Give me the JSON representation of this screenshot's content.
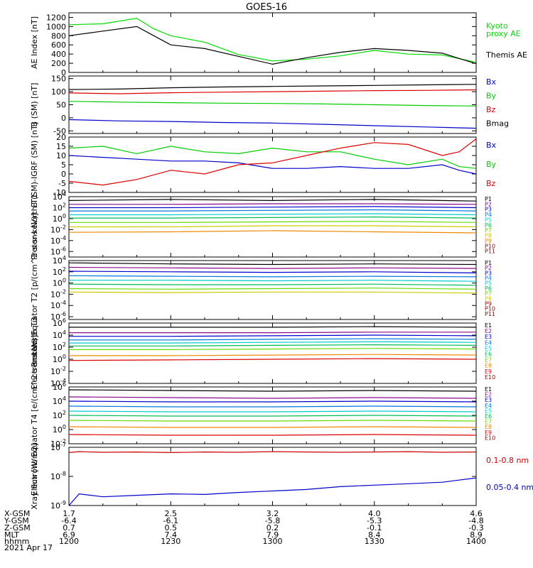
{
  "title": "GOES-16",
  "date": "2021 Apr 17",
  "footer": {
    "row_labels": [
      "X-GSM",
      "Y-GSM",
      "Z-GSM",
      "MLT",
      "hhmm"
    ],
    "columns": [
      [
        "1.7",
        "-6.4",
        "0.7",
        "6.9",
        "1200"
      ],
      [
        "2.5",
        "-6.1",
        "0.5",
        "7.4",
        "1230"
      ],
      [
        "3.2",
        "-5.8",
        "0.2",
        "7.9",
        "1300"
      ],
      [
        "4.0",
        "-5.3",
        "-0.1",
        "8.4",
        "1330"
      ],
      [
        "4.6",
        "-4.8",
        "-0.3",
        "8.9",
        "1400"
      ]
    ]
  },
  "chart_data": [
    {
      "type": "line",
      "ylabel": "AE Index [nT]",
      "ylim": [
        0,
        1300
      ],
      "yticks": [
        0,
        200,
        400,
        600,
        800,
        1000,
        1200
      ],
      "x": [
        1200,
        1210,
        1220,
        1225,
        1230,
        1240,
        1250,
        1300,
        1310,
        1320,
        1330,
        1340,
        1350,
        1400
      ],
      "series": [
        {
          "name": "Kyoto proxy AE",
          "color": "#00dd00",
          "values": [
            1040,
            1060,
            1180,
            950,
            800,
            660,
            390,
            250,
            290,
            360,
            480,
            400,
            380,
            220
          ]
        },
        {
          "name": "Themis AE",
          "color": "#000000",
          "values": [
            800,
            900,
            1000,
            800,
            600,
            520,
            350,
            180,
            320,
            440,
            520,
            480,
            420,
            190
          ]
        }
      ]
    },
    {
      "type": "line",
      "ylabel": "B (SM) [nT]",
      "ylim": [
        -60,
        160
      ],
      "yticks": [
        -50,
        0,
        50,
        100,
        150
      ],
      "x": [
        1200,
        1215,
        1230,
        1245,
        1300,
        1315,
        1330,
        1345,
        1400
      ],
      "series": [
        {
          "name": "Bx",
          "color": "#0000cc",
          "values": [
            -7,
            -12,
            -14,
            -18,
            -20,
            -25,
            -30,
            -35,
            -40
          ]
        },
        {
          "name": "By",
          "color": "#00cc00",
          "values": [
            63,
            60,
            58,
            56,
            55,
            53,
            50,
            47,
            45
          ]
        },
        {
          "name": "Bz",
          "color": "#dd0000",
          "values": [
            95,
            92,
            96,
            98,
            100,
            102,
            104,
            105,
            107
          ]
        },
        {
          "name": "Bmag",
          "color": "#000000",
          "values": [
            108,
            110,
            115,
            118,
            120,
            122,
            124,
            126,
            128
          ]
        }
      ]
    },
    {
      "type": "line",
      "ylabel": "B (SM)-IGRF (SM) [nT]",
      "ylim": [
        -10,
        20
      ],
      "yticks": [
        -10,
        -5,
        0,
        5,
        10,
        15,
        20
      ],
      "x": [
        1200,
        1210,
        1220,
        1230,
        1240,
        1250,
        1300,
        1310,
        1320,
        1330,
        1340,
        1350,
        1355,
        1400
      ],
      "series": [
        {
          "name": "Bx",
          "color": "#0000cc",
          "values": [
            10,
            9,
            8,
            7,
            7,
            6,
            3,
            3,
            4,
            3,
            3,
            5,
            2,
            0
          ]
        },
        {
          "name": "By",
          "color": "#00cc00",
          "values": [
            14,
            15,
            11,
            15,
            12,
            11,
            14,
            12,
            12,
            8,
            5,
            8,
            4,
            3
          ]
        },
        {
          "name": "Bz",
          "color": "#dd0000",
          "values": [
            -4,
            -6,
            -3,
            2,
            0,
            5,
            6,
            10,
            14,
            17,
            16,
            10,
            12,
            19
          ]
        }
      ]
    },
    {
      "type": "line",
      "ylabel": "Protons North T1",
      "log_scale": true,
      "ylim": [
        -7,
        4
      ],
      "yticks": [
        "10^4",
        "10^2",
        "10^0",
        "10^-2",
        "10^-4",
        "10^-6"
      ],
      "x": [
        1200,
        1230,
        1300,
        1330,
        1400
      ],
      "series": [
        {
          "name": "P1",
          "color": "#000000",
          "values": [
            3.3,
            3.5,
            3.3,
            3.5,
            3.2
          ]
        },
        {
          "name": "P2",
          "color": "#8a0a8a",
          "values": [
            2.6,
            2.6,
            2.7,
            2.7,
            2.6
          ]
        },
        {
          "name": "P3",
          "color": "#0000cc",
          "values": [
            2.0,
            2.0,
            2.1,
            2.2,
            2.0
          ]
        },
        {
          "name": "P4",
          "color": "#0077dd",
          "values": [
            1.4,
            1.4,
            1.5,
            1.6,
            1.4
          ]
        },
        {
          "name": "P5",
          "color": "#00cccc",
          "values": [
            0.7,
            0.7,
            0.8,
            0.9,
            0.7
          ]
        },
        {
          "name": "P6",
          "color": "#00bb55",
          "values": [
            0.1,
            0.1,
            0.2,
            0.3,
            0.1
          ]
        },
        {
          "name": "P7",
          "color": "#66dd00",
          "values": [
            -0.7,
            -0.7,
            -0.6,
            -0.5,
            -0.7
          ]
        },
        {
          "name": "P8",
          "color": "#cccc00",
          "values": [
            -1.5,
            -1.5,
            -1.3,
            -1.3,
            -1.5
          ]
        },
        {
          "name": "P9",
          "color": "#ee8800",
          "values": [
            -2.5,
            -2.4,
            -2.2,
            -2.4,
            -2.6
          ]
        }
      ],
      "legend": [
        "P1",
        "P2",
        "P3",
        "P4",
        "P5",
        "P6",
        "P7",
        "P8",
        "P9",
        "P10",
        "P11"
      ]
    },
    {
      "type": "line",
      "ylabel": "Protons Equator T2 [p/(cm^2-s-sr-keV)]",
      "log_scale": true,
      "ylim": [
        -6.5,
        4
      ],
      "yticks": [
        "10^4",
        "10^2",
        "10^0",
        "10^-2",
        "10^-4",
        "10^-6"
      ],
      "x": [
        1200,
        1230,
        1300,
        1330,
        1400
      ],
      "series": [
        {
          "name": "P1",
          "color": "#000000",
          "values": [
            3.6,
            3.4,
            3.3,
            3.4,
            3.3
          ]
        },
        {
          "name": "P2",
          "color": "#8a0a8a",
          "values": [
            2.8,
            2.7,
            2.6,
            2.7,
            2.6
          ]
        },
        {
          "name": "P3",
          "color": "#0000cc",
          "values": [
            2.1,
            2.0,
            1.9,
            2.0,
            1.8
          ]
        },
        {
          "name": "P4",
          "color": "#0077dd",
          "values": [
            1.3,
            1.2,
            1.1,
            1.2,
            1.1
          ]
        },
        {
          "name": "P5",
          "color": "#00cccc",
          "values": [
            0.5,
            0.5,
            0.4,
            0.5,
            0.3
          ]
        },
        {
          "name": "P6",
          "color": "#00bb55",
          "values": [
            -0.2,
            -0.3,
            -0.3,
            -0.2,
            -0.4
          ]
        },
        {
          "name": "P7",
          "color": "#66dd00",
          "values": [
            -1.0,
            -1.1,
            -1.0,
            -0.9,
            -1.1
          ]
        },
        {
          "name": "P8",
          "color": "#cccc00",
          "values": [
            -1.6,
            -1.7,
            -1.6,
            -1.6,
            -1.8
          ]
        }
      ],
      "legend": [
        "P1",
        "P2",
        "P3",
        "P4",
        "P5",
        "P6",
        "P7",
        "P8",
        "P9",
        "P10",
        "P11"
      ]
    },
    {
      "type": "line",
      "ylabel": "Electrons North T3",
      "log_scale": true,
      "ylim": [
        -4,
        6
      ],
      "yticks": [
        "10^6",
        "10^4",
        "10^2",
        "10^0",
        "10^-2",
        "10^-4"
      ],
      "x": [
        1200,
        1230,
        1300,
        1330,
        1400
      ],
      "series": [
        {
          "name": "E1",
          "color": "#000000",
          "values": [
            5.3,
            5.3,
            5.3,
            5.4,
            5.3
          ]
        },
        {
          "name": "E2",
          "color": "#8a0a8a",
          "values": [
            4.4,
            4.4,
            4.4,
            4.5,
            4.5
          ]
        },
        {
          "name": "E3",
          "color": "#0000cc",
          "values": [
            3.8,
            3.8,
            3.9,
            4.0,
            3.9
          ]
        },
        {
          "name": "E4",
          "color": "#0077dd",
          "values": [
            3.2,
            3.2,
            3.3,
            3.4,
            3.3
          ]
        },
        {
          "name": "E5",
          "color": "#00cccc",
          "values": [
            2.7,
            2.7,
            2.8,
            2.9,
            2.8
          ]
        },
        {
          "name": "E6",
          "color": "#00bb55",
          "values": [
            2.2,
            2.2,
            2.3,
            2.4,
            2.3
          ]
        },
        {
          "name": "E7",
          "color": "#66dd00",
          "values": [
            1.6,
            1.6,
            1.7,
            1.8,
            1.7
          ]
        },
        {
          "name": "E8",
          "color": "#ee8800",
          "values": [
            0.6,
            0.6,
            0.7,
            0.8,
            0.7
          ]
        },
        {
          "name": "E9",
          "color": "#dd0000",
          "values": [
            -0.2,
            -0.1,
            0.0,
            0.1,
            0.0
          ]
        }
      ],
      "legend": [
        "E1",
        "E2",
        "E3",
        "E4",
        "E5",
        "E6",
        "E7",
        "E8",
        "E9",
        "E10"
      ]
    },
    {
      "type": "line",
      "ylabel": "Electrons Equator T4 [e/(cm^2-s-sr-keV)]",
      "log_scale": true,
      "ylim": [
        -2,
        6
      ],
      "yticks": [
        "10^6",
        "10^4",
        "10^2",
        "10^0",
        "10^-2"
      ],
      "x": [
        1200,
        1230,
        1300,
        1330,
        1400
      ],
      "series": [
        {
          "name": "E1",
          "color": "#000000",
          "values": [
            5.6,
            5.5,
            5.4,
            5.5,
            5.4
          ]
        },
        {
          "name": "E2",
          "color": "#8a0a8a",
          "values": [
            4.6,
            4.5,
            4.4,
            4.5,
            4.4
          ]
        },
        {
          "name": "E3",
          "color": "#0000cc",
          "values": [
            4.0,
            3.9,
            3.9,
            4.0,
            3.9
          ]
        },
        {
          "name": "E4",
          "color": "#0077dd",
          "values": [
            3.3,
            3.2,
            3.2,
            3.3,
            3.2
          ]
        },
        {
          "name": "E5",
          "color": "#00cccc",
          "values": [
            2.6,
            2.5,
            2.5,
            2.6,
            2.5
          ]
        },
        {
          "name": "E6",
          "color": "#00bb55",
          "values": [
            2.0,
            1.9,
            1.9,
            2.0,
            1.9
          ]
        },
        {
          "name": "E7",
          "color": "#66dd00",
          "values": [
            1.3,
            1.2,
            1.2,
            1.3,
            1.2
          ]
        },
        {
          "name": "E8",
          "color": "#ee8800",
          "values": [
            0.4,
            0.3,
            0.3,
            0.4,
            0.3
          ]
        },
        {
          "name": "E9",
          "color": "#dd0000",
          "values": [
            -0.7,
            -0.8,
            -0.8,
            -0.7,
            -0.8
          ]
        }
      ],
      "legend": [
        "E1",
        "E2",
        "E3",
        "E4",
        "E5",
        "E6",
        "E7",
        "E8",
        "E9",
        "E10"
      ]
    },
    {
      "type": "line",
      "ylabel": "Xray flux [W/m2]",
      "log_scale": true,
      "ylim": [
        -9,
        -7
      ],
      "yticks": [
        "10^-7",
        "10^-8",
        "10^-9"
      ],
      "x": [
        1200,
        1203,
        1210,
        1220,
        1230,
        1240,
        1250,
        1300,
        1310,
        1320,
        1330,
        1340,
        1350,
        1400
      ],
      "series": [
        {
          "name": "0.1-0.8 nm",
          "color": "#cc0000",
          "values": [
            -7.18,
            -7.15,
            -7.17,
            -7.16,
            -7.18,
            -7.16,
            -7.17,
            -7.15,
            -7.16,
            -7.17,
            -7.16,
            -7.15,
            -7.17,
            -7.16
          ]
        },
        {
          "name": "0.05-0.4 nm",
          "color": "#0000cc",
          "values": [
            -9.0,
            -8.6,
            -8.7,
            -8.65,
            -8.6,
            -8.62,
            -8.55,
            -8.5,
            -8.45,
            -8.35,
            -8.3,
            -8.25,
            -8.2,
            -8.05
          ]
        }
      ],
      "legend": [
        "0.1-0.8 nm",
        "0.05-0.4 nm"
      ]
    }
  ]
}
